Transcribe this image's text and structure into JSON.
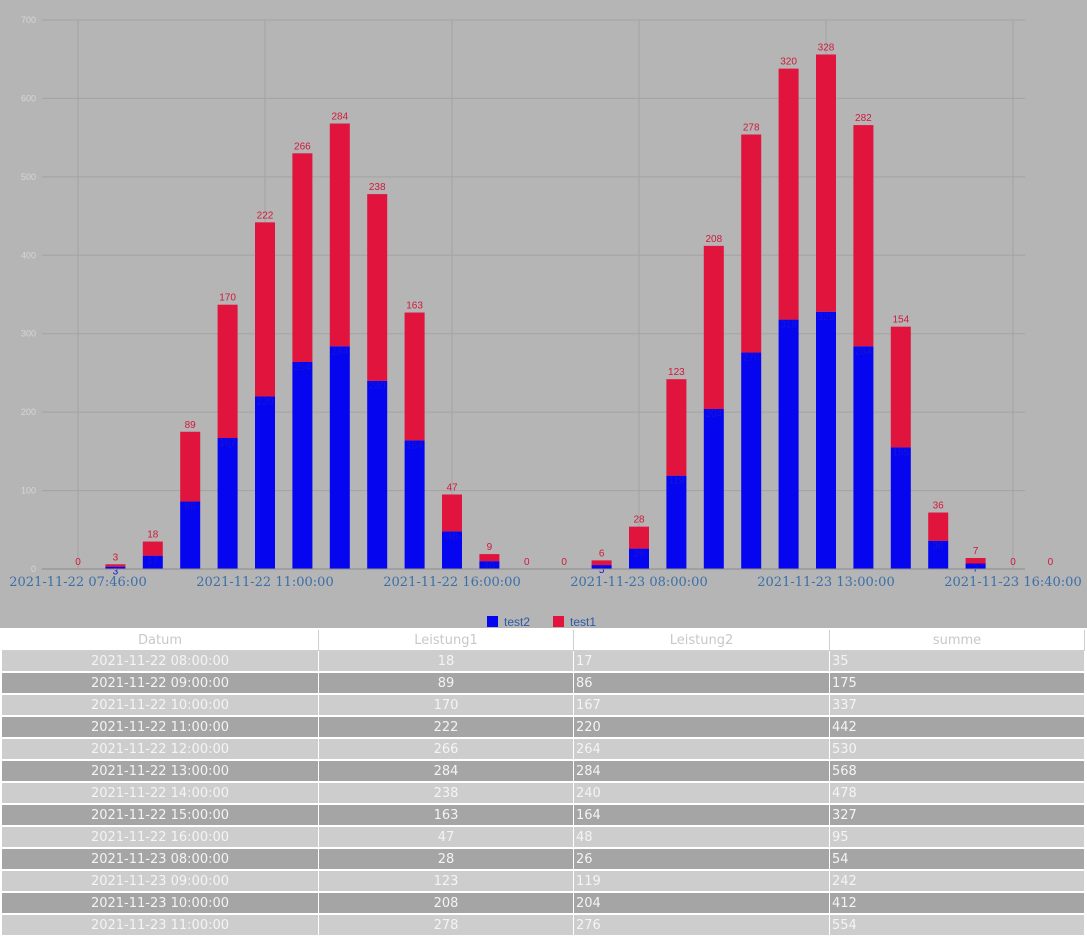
{
  "chart_data": {
    "type": "bar",
    "stacked": true,
    "categories": [
      "",
      "",
      "",
      "",
      "",
      "",
      "",
      "",
      "",
      "",
      "",
      "",
      "",
      "",
      "",
      "",
      "",
      "",
      "",
      "",
      "",
      "",
      "",
      "",
      "",
      "",
      ""
    ],
    "x_tick_labels": [
      {
        "index": 0,
        "label": "2021-11-22 07:46:00"
      },
      {
        "index": 5,
        "label": "2021-11-22 11:00:00"
      },
      {
        "index": 10,
        "label": "2021-11-22 16:00:00"
      },
      {
        "index": 15,
        "label": "2021-11-23 08:00:00"
      },
      {
        "index": 20,
        "label": "2021-11-23 13:00:00"
      },
      {
        "index": 25,
        "label": "2021-11-23 16:40:00"
      }
    ],
    "series": [
      {
        "name": "test2",
        "color": "#0505f0",
        "values": [
          0,
          3,
          17,
          86,
          167,
          220,
          264,
          284,
          240,
          164,
          48,
          10,
          0,
          0,
          5,
          26,
          119,
          204,
          276,
          318,
          328,
          284,
          155,
          36,
          7,
          0,
          0
        ]
      },
      {
        "name": "test1",
        "color": "#e0143c",
        "values": [
          0,
          3,
          18,
          89,
          170,
          222,
          266,
          284,
          238,
          163,
          47,
          9,
          0,
          0,
          6,
          28,
          123,
          208,
          278,
          320,
          328,
          282,
          154,
          36,
          7,
          0,
          0
        ]
      }
    ],
    "ylim": [
      0,
      700
    ],
    "yticks": [
      0,
      100,
      200,
      300,
      400,
      500,
      600,
      700
    ],
    "grid": true,
    "legend_position": "bottom"
  },
  "table": {
    "headers": [
      "Datum",
      "Leistung1",
      "Leistung2",
      "summe"
    ],
    "rows": [
      [
        "2021-11-22 08:00:00",
        "18",
        "17",
        "35"
      ],
      [
        "2021-11-22 09:00:00",
        "89",
        "86",
        "175"
      ],
      [
        "2021-11-22 10:00:00",
        "170",
        "167",
        "337"
      ],
      [
        "2021-11-22 11:00:00",
        "222",
        "220",
        "442"
      ],
      [
        "2021-11-22 12:00:00",
        "266",
        "264",
        "530"
      ],
      [
        "2021-11-22 13:00:00",
        "284",
        "284",
        "568"
      ],
      [
        "2021-11-22 14:00:00",
        "238",
        "240",
        "478"
      ],
      [
        "2021-11-22 15:00:00",
        "163",
        "164",
        "327"
      ],
      [
        "2021-11-22 16:00:00",
        "47",
        "48",
        "95"
      ],
      [
        "2021-11-23 08:00:00",
        "28",
        "26",
        "54"
      ],
      [
        "2021-11-23 09:00:00",
        "123",
        "119",
        "242"
      ],
      [
        "2021-11-23 10:00:00",
        "208",
        "204",
        "412"
      ],
      [
        "2021-11-23 11:00:00",
        "278",
        "276",
        "554"
      ]
    ]
  }
}
